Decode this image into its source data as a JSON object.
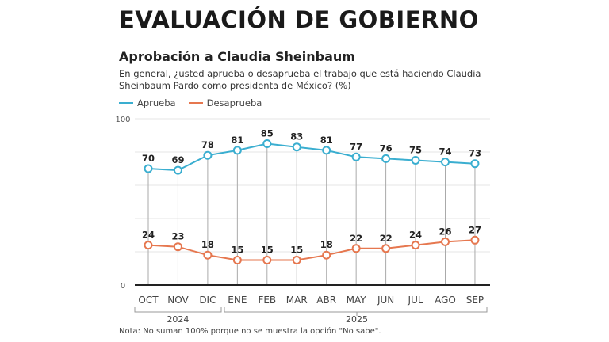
{
  "header": {
    "title": "EVALUACIÓN DE GOBIERNO",
    "subtitle": "Aprobación a Claudia Sheinbaum",
    "question": "En general, ¿usted aprueba o desaprueba el trabajo que está haciendo Claudia Sheinbaum Pardo como presidenta de México? (%)"
  },
  "note": "Nota: No suman 100% porque no se muestra la opción \"No sabe\".",
  "chart_data": {
    "type": "line",
    "categories": [
      "OCT",
      "NOV",
      "DIC",
      "ENE",
      "FEB",
      "MAR",
      "ABR",
      "MAY",
      "JUN",
      "JUL",
      "AGO",
      "SEP"
    ],
    "year_groups": [
      {
        "label": "2024",
        "from": "OCT",
        "to": "DIC"
      },
      {
        "label": "2025",
        "from": "ENE",
        "to": "SEP"
      }
    ],
    "ylim": [
      0,
      100
    ],
    "yticks": [
      "0",
      "100"
    ],
    "grid": true,
    "legend": "top-left",
    "series": [
      {
        "name": "Aprueba",
        "color": "#3aaed0",
        "values": [
          70,
          69,
          78,
          81,
          85,
          83,
          81,
          77,
          76,
          75,
          74,
          73
        ]
      },
      {
        "name": "Desaprueba",
        "color": "#e6774f",
        "values": [
          24,
          23,
          18,
          15,
          15,
          15,
          18,
          22,
          22,
          24,
          26,
          27
        ]
      }
    ]
  }
}
